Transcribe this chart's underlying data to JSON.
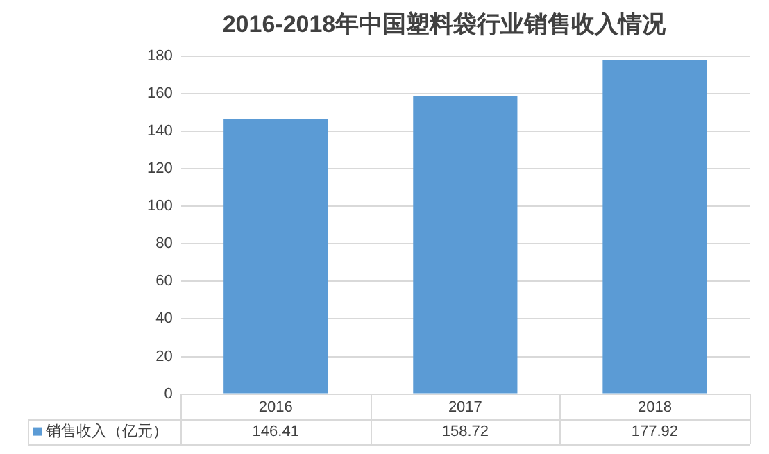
{
  "chart_data": {
    "type": "bar",
    "title": "2016-2018年中国塑料袋行业销售收入情况",
    "categories": [
      "2016",
      "2017",
      "2018"
    ],
    "series": [
      {
        "name": "销售收入（亿元）",
        "color": "#5b9bd5",
        "values": [
          146.41,
          158.72,
          177.92
        ]
      }
    ],
    "ylim": [
      0,
      180
    ],
    "yticks": [
      0,
      20,
      40,
      60,
      80,
      100,
      120,
      140,
      160,
      180
    ],
    "grid": "y",
    "legend": "bottom",
    "data_labels": true
  }
}
